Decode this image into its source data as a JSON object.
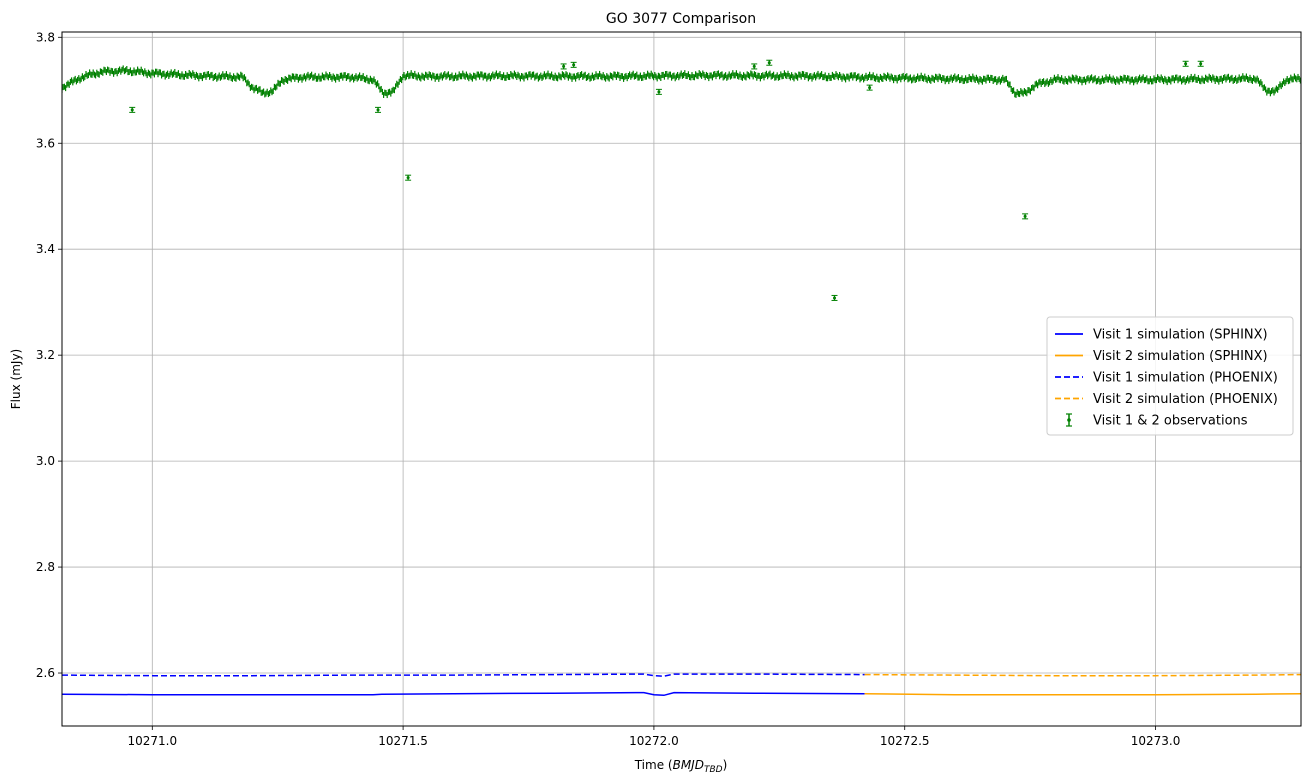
{
  "chart_data": {
    "type": "line",
    "title": "GO 3077 Comparison",
    "xlabel": "Time (BMJD_TBD)",
    "xlabel_parts": {
      "prefix": "Time (",
      "main": "BMJD",
      "sub": "TBD",
      "suffix": ")"
    },
    "ylabel": "Flux (mJy)",
    "xlim": [
      10270.82,
      10273.29
    ],
    "ylim": [
      2.5,
      3.81
    ],
    "xticks": [
      10271.0,
      10271.5,
      10272.0,
      10272.5,
      10273.0
    ],
    "xtick_labels": [
      "10271.0",
      "10271.5",
      "10272.0",
      "10272.5",
      "10273.0"
    ],
    "yticks": [
      2.6,
      2.8,
      3.0,
      3.2,
      3.4,
      3.6,
      3.8
    ],
    "ytick_labels": [
      "2.6",
      "2.8",
      "3.0",
      "3.2",
      "3.4",
      "3.6",
      "3.8"
    ],
    "grid": true,
    "legend_position": "center-right",
    "series": [
      {
        "name": "Visit 1 simulation (SPHINX)",
        "style": "solid",
        "color": "#0000ff",
        "x": [
          10270.82,
          10271.0,
          10271.2,
          10271.4,
          10271.44,
          10271.46,
          10271.6,
          10271.8,
          10271.98,
          10272.0,
          10272.02,
          10272.04,
          10272.2,
          10272.42
        ],
        "y": [
          2.56,
          2.559,
          2.559,
          2.559,
          2.559,
          2.56,
          2.561,
          2.562,
          2.563,
          2.559,
          2.558,
          2.563,
          2.562,
          2.561
        ]
      },
      {
        "name": "Visit 2 simulation (SPHINX)",
        "style": "solid",
        "color": "#ffa500",
        "x": [
          10272.42,
          10272.6,
          10272.8,
          10273.0,
          10273.2,
          10273.29
        ],
        "y": [
          2.561,
          2.559,
          2.559,
          2.559,
          2.56,
          2.561
        ]
      },
      {
        "name": "Visit 1 simulation (PHOENIX)",
        "style": "dashed",
        "color": "#0000ff",
        "x": [
          10270.82,
          10271.0,
          10271.2,
          10271.4,
          10271.6,
          10271.8,
          10271.98,
          10272.0,
          10272.02,
          10272.04,
          10272.2,
          10272.42
        ],
        "y": [
          2.596,
          2.595,
          2.595,
          2.596,
          2.596,
          2.597,
          2.598,
          2.595,
          2.594,
          2.598,
          2.598,
          2.597
        ]
      },
      {
        "name": "Visit 2 simulation (PHOENIX)",
        "style": "dashed",
        "color": "#ffa500",
        "x": [
          10272.42,
          10272.6,
          10272.8,
          10273.0,
          10273.2,
          10273.29
        ],
        "y": [
          2.597,
          2.596,
          2.595,
          2.595,
          2.596,
          2.597
        ]
      },
      {
        "name": "Visit 1 & 2 observations",
        "style": "errorbar",
        "color": "#008000",
        "baseline": {
          "x": [
            10270.82,
            10270.86,
            10270.9,
            10270.95,
            10271.0,
            10271.1,
            10271.18,
            10271.2,
            10271.22,
            10271.24,
            10271.26,
            10271.3,
            10271.4,
            10271.44,
            10271.46,
            10271.48,
            10271.5,
            10271.55,
            10271.7,
            10271.9,
            10272.1,
            10272.3,
            10272.5,
            10272.7,
            10272.72,
            10272.74,
            10272.76,
            10272.8,
            10273.0,
            10273.2,
            10273.22,
            10273.24,
            10273.26,
            10273.29
          ],
          "y": [
            3.705,
            3.725,
            3.735,
            3.737,
            3.732,
            3.727,
            3.725,
            3.705,
            3.695,
            3.698,
            3.72,
            3.725,
            3.725,
            3.72,
            3.695,
            3.697,
            3.728,
            3.726,
            3.727,
            3.726,
            3.728,
            3.727,
            3.723,
            3.72,
            3.695,
            3.694,
            3.71,
            3.72,
            3.72,
            3.722,
            3.7,
            3.698,
            3.72,
            3.722
          ]
        },
        "outliers": {
          "x": [
            10270.96,
            10271.45,
            10271.51,
            10271.82,
            10271.84,
            10272.01,
            10272.2,
            10272.23,
            10272.36,
            10272.43,
            10272.74,
            10273.06,
            10273.09
          ],
          "y": [
            3.663,
            3.663,
            3.535,
            3.745,
            3.748,
            3.697,
            3.745,
            3.752,
            3.308,
            3.705,
            3.462,
            3.75,
            3.75
          ]
        }
      }
    ]
  }
}
